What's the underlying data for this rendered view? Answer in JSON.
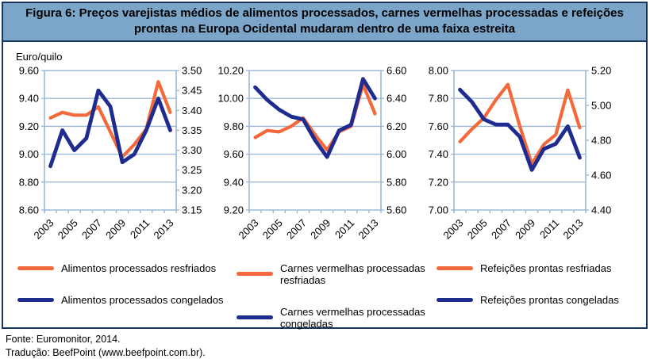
{
  "figure": {
    "title_line1": "Figura 6: Preços varejistas médios de alimentos processados, carnes vermelhas processadas e refeições",
    "title_line2": "prontas na Europa Ocidental mudaram dentro de uma faixa estreita",
    "unit_label": "Euro/quilo",
    "footer_line1": "Fonte: Euromonitor, 2014.",
    "footer_line2": "Tradução: BeefPoint (www.beefpoint.com.br)."
  },
  "colors": {
    "chilled": "#F4693C",
    "frozen": "#1E2B8F",
    "axis": "#9CB8D4",
    "title_bg": "#7CA6C9",
    "border": "#17365D"
  },
  "chart_data": [
    {
      "type": "line",
      "title": "Alimentos processados",
      "years": [
        2003,
        2004,
        2005,
        2006,
        2007,
        2008,
        2009,
        2010,
        2011,
        2012,
        2013
      ],
      "year_tick_labels": [
        "2003",
        "2005",
        "2007",
        "2009",
        "2011",
        "2013"
      ],
      "left_axis": {
        "min": 8.6,
        "max": 9.6,
        "ticks": [
          9.6,
          9.4,
          9.2,
          9.0,
          8.8,
          8.6
        ]
      },
      "right_axis": {
        "min": 3.15,
        "max": 3.5,
        "ticks": [
          3.5,
          3.45,
          3.4,
          3.35,
          3.3,
          3.25,
          3.2,
          3.15
        ]
      },
      "series": [
        {
          "name": "Alimentos processados resfriados",
          "axis": "left",
          "color": "chilled",
          "values": [
            9.26,
            9.3,
            9.28,
            9.28,
            9.34,
            9.16,
            8.98,
            9.07,
            9.18,
            9.52,
            9.3
          ]
        },
        {
          "name": "Alimentos processados congelados",
          "axis": "right",
          "color": "frozen",
          "values": [
            3.26,
            3.35,
            3.3,
            3.33,
            3.45,
            3.41,
            3.27,
            3.29,
            3.35,
            3.43,
            3.35
          ]
        }
      ]
    },
    {
      "type": "line",
      "title": "Carnes vermelhas processadas",
      "years": [
        2003,
        2004,
        2005,
        2006,
        2007,
        2008,
        2009,
        2010,
        2011,
        2012,
        2013
      ],
      "year_tick_labels": [
        "2003",
        "2005",
        "2007",
        "2009",
        "2011",
        "2013"
      ],
      "left_axis": {
        "min": 9.2,
        "max": 10.2,
        "ticks": [
          10.2,
          10.0,
          9.8,
          9.6,
          9.4,
          9.2
        ]
      },
      "right_axis": {
        "min": 5.6,
        "max": 6.6,
        "ticks": [
          6.6,
          6.4,
          6.2,
          6.0,
          5.8,
          5.6
        ]
      },
      "series": [
        {
          "name": "Carnes vermelhas processadas resfriadas",
          "axis": "left",
          "color": "chilled",
          "values": [
            9.72,
            9.77,
            9.76,
            9.8,
            9.86,
            9.74,
            9.63,
            9.76,
            9.8,
            10.1,
            9.89
          ]
        },
        {
          "name": "Carnes vermelhas processadas congeladas",
          "axis": "right",
          "color": "frozen",
          "values": [
            6.48,
            6.39,
            6.32,
            6.27,
            6.25,
            6.1,
            5.98,
            6.17,
            6.21,
            6.54,
            6.4
          ]
        }
      ]
    },
    {
      "type": "line",
      "title": "Refeições prontas",
      "years": [
        2003,
        2004,
        2005,
        2006,
        2007,
        2008,
        2009,
        2010,
        2011,
        2012,
        2013
      ],
      "year_tick_labels": [
        "2003",
        "2005",
        "2007",
        "2009",
        "2011",
        "2013"
      ],
      "left_axis": {
        "min": 7.0,
        "max": 8.0,
        "ticks": [
          8.0,
          7.8,
          7.6,
          7.4,
          7.2,
          7.0
        ]
      },
      "right_axis": {
        "min": 4.4,
        "max": 5.2,
        "ticks": [
          5.2,
          5.0,
          4.8,
          4.6,
          4.4
        ]
      },
      "series": [
        {
          "name": "Refeições prontas resfriadas",
          "axis": "left",
          "color": "chilled",
          "values": [
            7.49,
            7.58,
            7.66,
            7.79,
            7.9,
            7.6,
            7.33,
            7.47,
            7.54,
            7.86,
            7.59
          ]
        },
        {
          "name": "Refeições prontas congeladas",
          "axis": "right",
          "color": "frozen",
          "values": [
            5.09,
            5.02,
            4.92,
            4.89,
            4.89,
            4.82,
            4.63,
            4.75,
            4.78,
            4.88,
            4.7
          ]
        }
      ]
    }
  ],
  "legend": {
    "items": [
      {
        "label": "Alimentos processados resfriados",
        "color": "chilled"
      },
      {
        "label": "Alimentos processados congelados",
        "color": "frozen"
      },
      {
        "label": "Carnes vermelhas processadas resfriadas",
        "color": "chilled"
      },
      {
        "label": "Carnes vermelhas processadas congeladas",
        "color": "frozen"
      },
      {
        "label": "Refeições prontas resfriadas",
        "color": "chilled"
      },
      {
        "label": "Refeições prontas congeladas",
        "color": "frozen"
      }
    ]
  }
}
